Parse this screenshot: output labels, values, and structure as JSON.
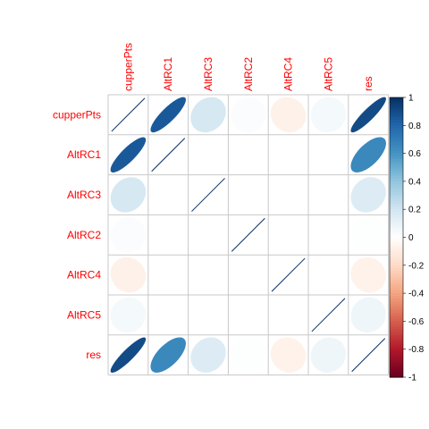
{
  "chart_data": {
    "type": "heatmap",
    "method": "ellipse",
    "variables": [
      "cupperPts",
      "AltRC1",
      "AltRC3",
      "AltRC2",
      "AltRC4",
      "AltRC5",
      "res"
    ],
    "matrix": [
      [
        1.0,
        0.85,
        0.18,
        0.02,
        -0.08,
        0.05,
        0.9
      ],
      [
        0.85,
        1.0,
        0.0,
        0.0,
        0.0,
        0.0,
        0.65
      ],
      [
        0.18,
        0.0,
        1.0,
        0.0,
        0.0,
        0.0,
        0.15
      ],
      [
        0.02,
        0.0,
        0.0,
        1.0,
        0.0,
        0.0,
        0.01
      ],
      [
        -0.08,
        0.0,
        0.0,
        0.0,
        1.0,
        0.0,
        -0.07
      ],
      [
        0.05,
        0.0,
        0.0,
        0.0,
        0.0,
        1.0,
        0.07
      ],
      [
        0.9,
        0.65,
        0.15,
        0.01,
        -0.07,
        0.07,
        1.0
      ]
    ],
    "colorbar": {
      "range": [
        -1,
        1
      ],
      "ticks": [
        1,
        0.8,
        0.6,
        0.4,
        0.2,
        0,
        -0.2,
        -0.4,
        -0.6,
        -0.8,
        -1
      ],
      "tick_labels": [
        "1",
        "0.8",
        "0.6",
        "0.4",
        "0.2",
        "0",
        "-0.2",
        "-0.4",
        "-0.6",
        "-0.8",
        "-1"
      ],
      "placement": "right"
    },
    "label_color": "#ff0000",
    "palette": [
      "#67001f",
      "#b2182b",
      "#d6604d",
      "#f4a582",
      "#fddbc7",
      "#ffffff",
      "#d1e5f0",
      "#92c5de",
      "#4393c3",
      "#2166ac",
      "#053061"
    ],
    "grid": true
  }
}
